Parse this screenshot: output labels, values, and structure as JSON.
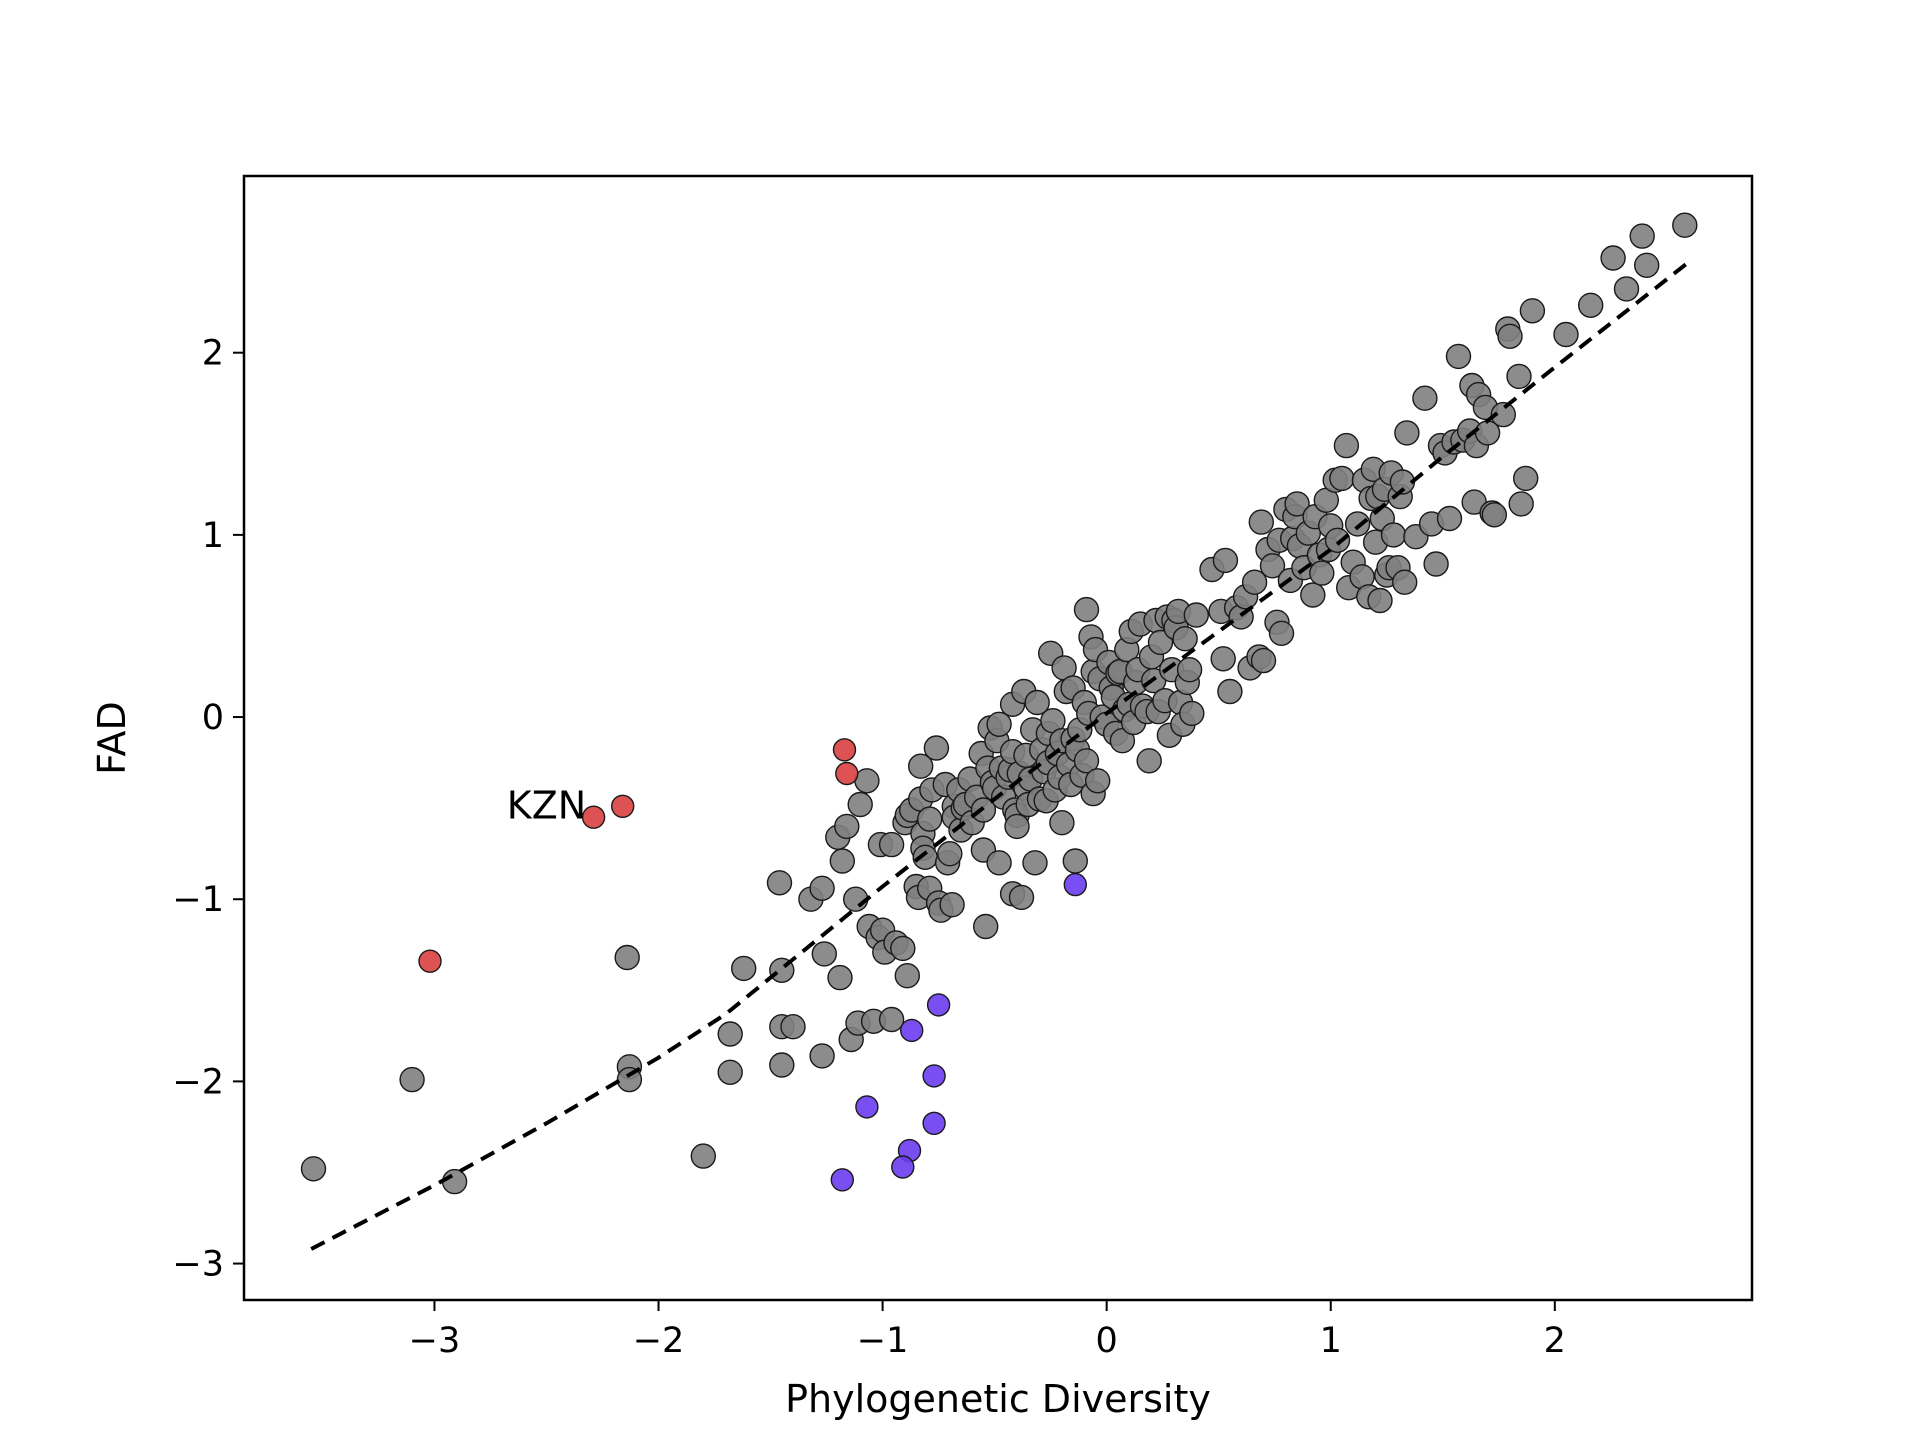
{
  "chart_data": {
    "type": "scatter",
    "title": "",
    "xlabel": "Phylogenetic Diversity",
    "ylabel": "FAD",
    "xlim": [
      -3.85,
      2.88
    ],
    "ylim": [
      -3.2,
      2.97
    ],
    "x_ticks": [
      -3,
      -2,
      -1,
      0,
      1,
      2
    ],
    "y_ticks": [
      -3,
      -2,
      -1,
      0,
      1,
      2
    ],
    "x_tick_labels": [
      "−3",
      "−2",
      "−1",
      "0",
      "1",
      "2"
    ],
    "y_tick_labels": [
      "−3",
      "−2",
      "−1",
      "0",
      "1",
      "2"
    ],
    "grid": false,
    "legend": "none",
    "colors": {
      "gray": "#808080",
      "red": "#d94040",
      "blue": "#6a3cf0",
      "edge": "#1a1a1a",
      "trend": "#000000"
    },
    "annotations": [
      {
        "text": "KZN",
        "x": -2.5,
        "y": -0.48
      }
    ],
    "trend_line": {
      "style": "dashed",
      "x": [
        -3.55,
        -3.0,
        -2.5,
        -2.0,
        -1.7,
        -1.5,
        -1.0,
        -0.5,
        0.0,
        0.5,
        1.0,
        1.5,
        2.0,
        2.6
      ],
      "y": [
        -2.92,
        -2.57,
        -2.23,
        -1.87,
        -1.63,
        -1.43,
        -0.93,
        -0.45,
        0.02,
        0.47,
        0.92,
        1.43,
        1.92,
        2.5
      ]
    },
    "series": [
      {
        "color": "red",
        "points": [
          [
            -2.29,
            -0.55
          ],
          [
            -2.16,
            -0.49
          ],
          [
            -3.02,
            -1.34
          ],
          [
            -1.17,
            -0.18
          ],
          [
            -1.16,
            -0.31
          ]
        ]
      },
      {
        "color": "blue",
        "points": [
          [
            -0.14,
            -0.92
          ],
          [
            -0.75,
            -1.58
          ],
          [
            -0.87,
            -1.72
          ],
          [
            -0.77,
            -1.97
          ],
          [
            -1.07,
            -2.14
          ],
          [
            -0.77,
            -2.23
          ],
          [
            -0.88,
            -2.38
          ],
          [
            -0.91,
            -2.47
          ],
          [
            -1.18,
            -2.54
          ]
        ]
      },
      {
        "color": "gray",
        "points": [
          [
            -3.54,
            -2.48
          ],
          [
            -3.1,
            -1.99
          ],
          [
            -2.91,
            -2.55
          ],
          [
            -2.14,
            -1.32
          ],
          [
            -2.13,
            -1.92
          ],
          [
            -2.13,
            -1.99
          ],
          [
            -1.8,
            -2.41
          ],
          [
            -1.68,
            -1.74
          ],
          [
            -1.68,
            -1.95
          ],
          [
            -1.62,
            -1.38
          ],
          [
            -1.46,
            -0.91
          ],
          [
            -1.45,
            -1.39
          ],
          [
            -1.45,
            -1.7
          ],
          [
            -1.45,
            -1.91
          ],
          [
            -1.4,
            -1.7
          ],
          [
            -1.32,
            -1.0
          ],
          [
            -1.27,
            -0.94
          ],
          [
            -1.26,
            -1.3
          ],
          [
            -1.27,
            -1.86
          ],
          [
            -1.2,
            -0.66
          ],
          [
            -1.19,
            -1.43
          ],
          [
            -1.18,
            -0.79
          ],
          [
            -1.16,
            -0.6
          ],
          [
            -1.14,
            -1.77
          ],
          [
            -1.12,
            -1.0
          ],
          [
            -1.11,
            -1.68
          ],
          [
            -1.1,
            -0.48
          ],
          [
            -1.07,
            -0.35
          ],
          [
            -1.06,
            -1.15
          ],
          [
            -1.04,
            -1.67
          ],
          [
            -1.02,
            -1.21
          ],
          [
            -1.01,
            -0.7
          ],
          [
            -1.0,
            -1.17
          ],
          [
            -0.99,
            -1.29
          ],
          [
            -0.96,
            -0.7
          ],
          [
            -0.96,
            -1.66
          ],
          [
            -0.94,
            -1.24
          ],
          [
            -0.91,
            -1.27
          ],
          [
            -0.9,
            -0.58
          ],
          [
            -0.89,
            -1.42
          ],
          [
            -0.89,
            -0.54
          ],
          [
            -0.87,
            -0.51
          ],
          [
            -0.85,
            -0.93
          ],
          [
            -0.84,
            -0.99
          ],
          [
            -0.83,
            -0.45
          ],
          [
            -0.83,
            -0.27
          ],
          [
            -0.82,
            -0.64
          ],
          [
            -0.82,
            -0.72
          ],
          [
            -0.81,
            -0.77
          ],
          [
            -0.79,
            -0.56
          ],
          [
            -0.79,
            -0.94
          ],
          [
            -0.78,
            -0.4
          ],
          [
            -0.75,
            -1.02
          ],
          [
            -0.76,
            -0.17
          ],
          [
            -0.74,
            -1.06
          ],
          [
            -0.72,
            -0.37
          ],
          [
            -0.71,
            -0.8
          ],
          [
            -0.7,
            -0.75
          ],
          [
            -0.69,
            -1.03
          ],
          [
            -0.68,
            -0.49
          ],
          [
            -0.68,
            -0.55
          ],
          [
            -0.66,
            -0.4
          ],
          [
            -0.65,
            -0.62
          ],
          [
            -0.64,
            -0.5
          ],
          [
            -0.63,
            -0.48
          ],
          [
            -0.61,
            -0.34
          ],
          [
            -0.6,
            -0.58
          ],
          [
            -0.58,
            -0.44
          ],
          [
            -0.56,
            -0.2
          ],
          [
            -0.55,
            -0.51
          ],
          [
            -0.55,
            -0.73
          ],
          [
            -0.54,
            -1.15
          ],
          [
            -0.53,
            -0.28
          ],
          [
            -0.52,
            -0.06
          ],
          [
            -0.51,
            -0.36
          ],
          [
            -0.5,
            -0.39
          ],
          [
            -0.49,
            -0.13
          ],
          [
            -0.48,
            -0.8
          ],
          [
            -0.48,
            -0.04
          ],
          [
            -0.47,
            -0.28
          ],
          [
            -0.46,
            -0.44
          ],
          [
            -0.44,
            -0.33
          ],
          [
            -0.43,
            -0.29
          ],
          [
            -0.42,
            -0.97
          ],
          [
            -0.42,
            0.07
          ],
          [
            -0.42,
            -0.19
          ],
          [
            -0.41,
            -0.51
          ],
          [
            -0.4,
            -0.54
          ],
          [
            -0.4,
            -0.6
          ],
          [
            -0.39,
            -0.31
          ],
          [
            -0.38,
            -0.99
          ],
          [
            -0.37,
            0.14
          ],
          [
            -0.36,
            -0.21
          ],
          [
            -0.36,
            -0.39
          ],
          [
            -0.35,
            -0.48
          ],
          [
            -0.34,
            -0.34
          ],
          [
            -0.33,
            -0.07
          ],
          [
            -0.32,
            -0.8
          ],
          [
            -0.31,
            0.08
          ],
          [
            -0.3,
            -0.45
          ],
          [
            -0.29,
            -0.18
          ],
          [
            -0.28,
            -0.3
          ],
          [
            -0.27,
            -0.46
          ],
          [
            -0.26,
            -0.25
          ],
          [
            -0.26,
            -0.09
          ],
          [
            -0.25,
            0.35
          ],
          [
            -0.24,
            -0.02
          ],
          [
            -0.23,
            -0.4
          ],
          [
            -0.22,
            -0.2
          ],
          [
            -0.21,
            -0.33
          ],
          [
            -0.2,
            -0.13
          ],
          [
            -0.2,
            -0.58
          ],
          [
            -0.19,
            0.27
          ],
          [
            -0.18,
            0.14
          ],
          [
            -0.17,
            -0.26
          ],
          [
            -0.16,
            -0.37
          ],
          [
            -0.15,
            -0.12
          ],
          [
            -0.15,
            0.16
          ],
          [
            -0.14,
            -0.79
          ],
          [
            -0.13,
            -0.18
          ],
          [
            -0.12,
            -0.07
          ],
          [
            -0.11,
            -0.32
          ],
          [
            -0.1,
            0.08
          ],
          [
            -0.09,
            0.59
          ],
          [
            -0.09,
            -0.24
          ],
          [
            -0.08,
            0.02
          ],
          [
            -0.07,
            0.44
          ],
          [
            -0.06,
            -0.42
          ],
          [
            -0.06,
            0.25
          ],
          [
            -0.05,
            0.37
          ],
          [
            -0.04,
            -0.35
          ],
          [
            -0.03,
            0.21
          ],
          [
            -0.02,
            0.0
          ],
          [
            0.0,
            -0.04
          ],
          [
            0.01,
            0.3
          ],
          [
            0.02,
            0.16
          ],
          [
            0.03,
            0.11
          ],
          [
            0.04,
            -0.09
          ],
          [
            0.05,
            0.24
          ],
          [
            0.06,
            0.25
          ],
          [
            0.07,
            -0.13
          ],
          [
            0.08,
            0.04
          ],
          [
            0.09,
            0.37
          ],
          [
            0.1,
            0.07
          ],
          [
            0.11,
            0.47
          ],
          [
            0.12,
            -0.03
          ],
          [
            0.13,
            0.19
          ],
          [
            0.14,
            0.26
          ],
          [
            0.15,
            0.51
          ],
          [
            0.16,
            0.06
          ],
          [
            0.18,
            0.03
          ],
          [
            0.19,
            -0.24
          ],
          [
            0.2,
            0.33
          ],
          [
            0.21,
            0.2
          ],
          [
            0.22,
            0.53
          ],
          [
            0.23,
            0.03
          ],
          [
            0.24,
            0.41
          ],
          [
            0.26,
            0.09
          ],
          [
            0.27,
            0.55
          ],
          [
            0.28,
            -0.1
          ],
          [
            0.29,
            0.26
          ],
          [
            0.3,
            0.53
          ],
          [
            0.31,
            0.49
          ],
          [
            0.32,
            0.58
          ],
          [
            0.33,
            0.08
          ],
          [
            0.34,
            -0.04
          ],
          [
            0.35,
            0.43
          ],
          [
            0.36,
            0.19
          ],
          [
            0.37,
            0.26
          ],
          [
            0.38,
            0.02
          ],
          [
            0.4,
            0.56
          ],
          [
            0.47,
            0.81
          ],
          [
            0.51,
            0.58
          ],
          [
            0.52,
            0.32
          ],
          [
            0.53,
            0.86
          ],
          [
            0.55,
            0.14
          ],
          [
            0.58,
            0.6
          ],
          [
            0.6,
            0.55
          ],
          [
            0.62,
            0.66
          ],
          [
            0.64,
            0.27
          ],
          [
            0.66,
            0.74
          ],
          [
            0.68,
            0.33
          ],
          [
            0.69,
            1.07
          ],
          [
            0.7,
            0.31
          ],
          [
            0.72,
            0.92
          ],
          [
            0.74,
            0.83
          ],
          [
            0.76,
            0.52
          ],
          [
            0.77,
            0.97
          ],
          [
            0.78,
            0.46
          ],
          [
            0.8,
            1.14
          ],
          [
            0.82,
            0.75
          ],
          [
            0.83,
            0.98
          ],
          [
            0.84,
            1.1
          ],
          [
            0.85,
            1.17
          ],
          [
            0.86,
            0.94
          ],
          [
            0.88,
            0.82
          ],
          [
            0.9,
            1.01
          ],
          [
            0.92,
            0.67
          ],
          [
            0.93,
            1.1
          ],
          [
            0.95,
            0.89
          ],
          [
            0.96,
            0.79
          ],
          [
            0.98,
            1.19
          ],
          [
            0.99,
            0.92
          ],
          [
            1.0,
            1.05
          ],
          [
            1.02,
            1.3
          ],
          [
            1.03,
            0.97
          ],
          [
            1.05,
            1.31
          ],
          [
            1.07,
            1.49
          ],
          [
            1.08,
            0.71
          ],
          [
            1.1,
            0.85
          ],
          [
            1.12,
            1.06
          ],
          [
            1.14,
            0.77
          ],
          [
            1.15,
            1.3
          ],
          [
            1.17,
            0.66
          ],
          [
            1.18,
            1.2
          ],
          [
            1.19,
            1.36
          ],
          [
            1.2,
            0.96
          ],
          [
            1.21,
            1.21
          ],
          [
            1.22,
            0.64
          ],
          [
            1.23,
            1.09
          ],
          [
            1.24,
            1.25
          ],
          [
            1.25,
            0.78
          ],
          [
            1.26,
            0.82
          ],
          [
            1.27,
            1.34
          ],
          [
            1.28,
            1.0
          ],
          [
            1.3,
            0.82
          ],
          [
            1.31,
            1.21
          ],
          [
            1.32,
            1.29
          ],
          [
            1.33,
            0.74
          ],
          [
            1.34,
            1.56
          ],
          [
            1.38,
            0.99
          ],
          [
            1.42,
            1.75
          ],
          [
            1.45,
            1.06
          ],
          [
            1.47,
            0.84
          ],
          [
            1.49,
            1.49
          ],
          [
            1.51,
            1.45
          ],
          [
            1.53,
            1.09
          ],
          [
            1.55,
            1.51
          ],
          [
            1.57,
            1.98
          ],
          [
            1.59,
            1.52
          ],
          [
            1.62,
            1.57
          ],
          [
            1.63,
            1.82
          ],
          [
            1.64,
            1.18
          ],
          [
            1.65,
            1.49
          ],
          [
            1.66,
            1.77
          ],
          [
            1.69,
            1.7
          ],
          [
            1.7,
            1.56
          ],
          [
            1.72,
            1.12
          ],
          [
            1.73,
            1.11
          ],
          [
            1.77,
            1.66
          ],
          [
            1.79,
            2.13
          ],
          [
            1.8,
            2.09
          ],
          [
            1.84,
            1.87
          ],
          [
            1.85,
            1.17
          ],
          [
            1.87,
            1.31
          ],
          [
            1.9,
            2.23
          ],
          [
            2.05,
            2.1
          ],
          [
            2.16,
            2.26
          ],
          [
            2.26,
            2.52
          ],
          [
            2.32,
            2.35
          ],
          [
            2.39,
            2.64
          ],
          [
            2.41,
            2.48
          ],
          [
            2.58,
            2.7
          ]
        ]
      }
    ]
  }
}
